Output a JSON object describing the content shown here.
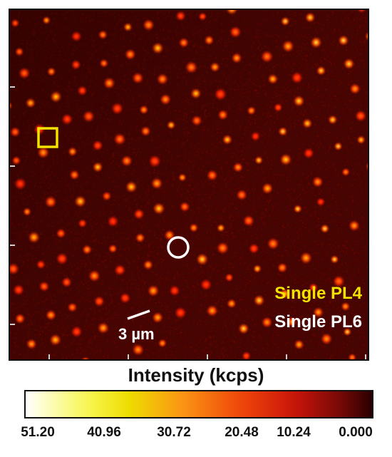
{
  "image": {
    "legend": {
      "pl4_label": "Single PL4",
      "pl4_color": "#f2e300",
      "pl6_label": "Single PL6",
      "pl6_color": "#ffffff"
    },
    "scale_bar_label": "3 µm",
    "markers": {
      "square_color": "#f2e300",
      "circle_color": "#ffffff"
    }
  },
  "colorbar": {
    "title": "Intensity (kcps)",
    "ticks": [
      "51.20",
      "40.96",
      "30.72",
      "20.48",
      "10.24",
      "0.000"
    ]
  }
}
